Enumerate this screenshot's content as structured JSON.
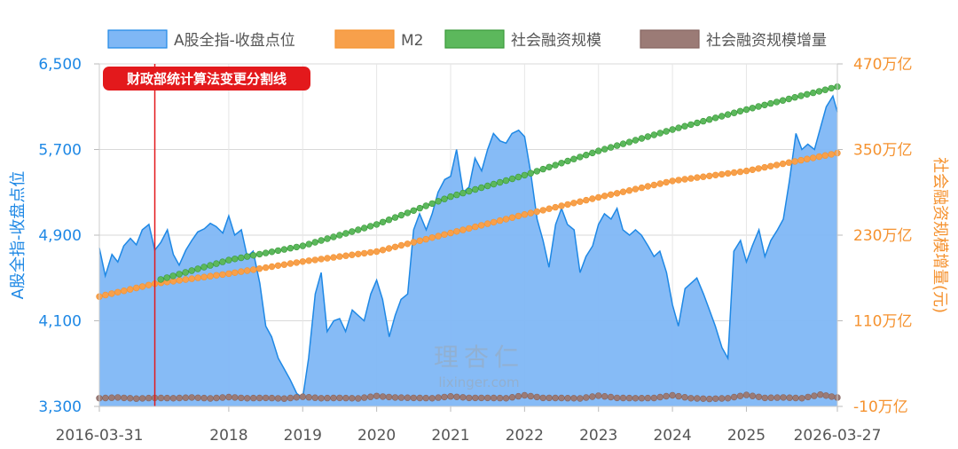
{
  "chart_data": {
    "type": "line",
    "legend": {
      "placement": "top",
      "items": [
        {
          "name": "A股全指-收盘点位",
          "color": "#7fb7f5",
          "border": "#1e88e5",
          "kind": "area"
        },
        {
          "name": "M2",
          "color": "#f7a04b",
          "border": "#f5922f",
          "kind": "line"
        },
        {
          "name": "社会融资规模",
          "color": "#5cb85c",
          "border": "#3a9a3a",
          "kind": "line"
        },
        {
          "name": "社会融资规模增量",
          "color": "#9b7b76",
          "border": "#866662",
          "kind": "line"
        }
      ]
    },
    "y_left": {
      "label": "A股全指-收盘点位",
      "min": 3300,
      "max": 6500,
      "ticks": [
        3300,
        4100,
        4900,
        5700,
        6500
      ],
      "tick_labels": [
        "3,300",
        "4,100",
        "4,900",
        "5,700",
        "6,500"
      ],
      "color": "#1e88e5"
    },
    "y_right": {
      "label": "社会融资规模增量(元)",
      "min": -10,
      "max": 470,
      "ticks": [
        -10,
        110,
        230,
        350,
        470
      ],
      "tick_labels": [
        "-10万亿",
        "110万亿",
        "230万亿",
        "350万亿",
        "470万亿"
      ],
      "color": "#f5922f"
    },
    "x_axis": {
      "start": "2016-03-31",
      "end": "2026-03-27",
      "ticks": [
        {
          "x": 2016.25,
          "label": "2016-03-31"
        },
        {
          "x": 2018.0,
          "label": "2018"
        },
        {
          "x": 2019.0,
          "label": "2019"
        },
        {
          "x": 2020.0,
          "label": "2020"
        },
        {
          "x": 2021.0,
          "label": "2021"
        },
        {
          "x": 2022.0,
          "label": "2022"
        },
        {
          "x": 2023.0,
          "label": "2023"
        },
        {
          "x": 2024.0,
          "label": "2024"
        },
        {
          "x": 2025.0,
          "label": "2025"
        },
        {
          "x": 2026.23,
          "label": "2026-03-27"
        }
      ]
    },
    "grid": true,
    "annotation": {
      "x": 2017.0,
      "label": "财政部统计算法变更分割线",
      "color": "#e3191c"
    },
    "series": [
      {
        "name": "A股全指-收盘点位",
        "axis": "left",
        "points": [
          [
            2016.25,
            4780
          ],
          [
            2016.33,
            4520
          ],
          [
            2016.42,
            4720
          ],
          [
            2016.5,
            4650
          ],
          [
            2016.58,
            4800
          ],
          [
            2016.67,
            4870
          ],
          [
            2016.75,
            4810
          ],
          [
            2016.83,
            4950
          ],
          [
            2016.92,
            5000
          ],
          [
            2017.0,
            4760
          ],
          [
            2017.08,
            4830
          ],
          [
            2017.17,
            4950
          ],
          [
            2017.25,
            4720
          ],
          [
            2017.33,
            4620
          ],
          [
            2017.42,
            4760
          ],
          [
            2017.5,
            4850
          ],
          [
            2017.58,
            4930
          ],
          [
            2017.67,
            4960
          ],
          [
            2017.75,
            5010
          ],
          [
            2017.83,
            4980
          ],
          [
            2017.92,
            4920
          ],
          [
            2018.0,
            5080
          ],
          [
            2018.08,
            4900
          ],
          [
            2018.17,
            4950
          ],
          [
            2018.25,
            4700
          ],
          [
            2018.33,
            4750
          ],
          [
            2018.42,
            4450
          ],
          [
            2018.5,
            4050
          ],
          [
            2018.58,
            3950
          ],
          [
            2018.67,
            3750
          ],
          [
            2018.75,
            3650
          ],
          [
            2018.83,
            3550
          ],
          [
            2018.92,
            3420
          ],
          [
            2019.0,
            3380
          ],
          [
            2019.08,
            3750
          ],
          [
            2019.17,
            4350
          ],
          [
            2019.25,
            4550
          ],
          [
            2019.33,
            4000
          ],
          [
            2019.42,
            4100
          ],
          [
            2019.5,
            4120
          ],
          [
            2019.58,
            4000
          ],
          [
            2019.67,
            4200
          ],
          [
            2019.75,
            4150
          ],
          [
            2019.83,
            4100
          ],
          [
            2019.92,
            4350
          ],
          [
            2020.0,
            4480
          ],
          [
            2020.08,
            4300
          ],
          [
            2020.17,
            3950
          ],
          [
            2020.25,
            4150
          ],
          [
            2020.33,
            4300
          ],
          [
            2020.42,
            4350
          ],
          [
            2020.5,
            4950
          ],
          [
            2020.58,
            5100
          ],
          [
            2020.67,
            4950
          ],
          [
            2020.75,
            5100
          ],
          [
            2020.83,
            5300
          ],
          [
            2020.92,
            5420
          ],
          [
            2021.0,
            5450
          ],
          [
            2021.08,
            5700
          ],
          [
            2021.17,
            5300
          ],
          [
            2021.25,
            5350
          ],
          [
            2021.33,
            5620
          ],
          [
            2021.42,
            5500
          ],
          [
            2021.5,
            5700
          ],
          [
            2021.58,
            5850
          ],
          [
            2021.67,
            5780
          ],
          [
            2021.75,
            5760
          ],
          [
            2021.83,
            5850
          ],
          [
            2021.92,
            5880
          ],
          [
            2022.0,
            5820
          ],
          [
            2022.08,
            5500
          ],
          [
            2022.17,
            5050
          ],
          [
            2022.25,
            4850
          ],
          [
            2022.33,
            4600
          ],
          [
            2022.42,
            5000
          ],
          [
            2022.5,
            5150
          ],
          [
            2022.58,
            5000
          ],
          [
            2022.67,
            4950
          ],
          [
            2022.75,
            4550
          ],
          [
            2022.83,
            4700
          ],
          [
            2022.92,
            4800
          ],
          [
            2023.0,
            5000
          ],
          [
            2023.08,
            5100
          ],
          [
            2023.17,
            5050
          ],
          [
            2023.25,
            5150
          ],
          [
            2023.33,
            4950
          ],
          [
            2023.42,
            4900
          ],
          [
            2023.5,
            4950
          ],
          [
            2023.58,
            4900
          ],
          [
            2023.67,
            4800
          ],
          [
            2023.75,
            4700
          ],
          [
            2023.83,
            4750
          ],
          [
            2023.92,
            4550
          ],
          [
            2024.0,
            4250
          ],
          [
            2024.08,
            4050
          ],
          [
            2024.17,
            4400
          ],
          [
            2024.25,
            4450
          ],
          [
            2024.33,
            4500
          ],
          [
            2024.42,
            4350
          ],
          [
            2024.5,
            4200
          ],
          [
            2024.58,
            4050
          ],
          [
            2024.67,
            3850
          ],
          [
            2024.75,
            3750
          ],
          [
            2024.83,
            4750
          ],
          [
            2024.92,
            4850
          ],
          [
            2025.0,
            4650
          ],
          [
            2025.08,
            4800
          ],
          [
            2025.17,
            4950
          ],
          [
            2025.25,
            4700
          ],
          [
            2025.33,
            4850
          ],
          [
            2025.42,
            4950
          ],
          [
            2025.5,
            5050
          ],
          [
            2025.58,
            5400
          ],
          [
            2025.67,
            5850
          ],
          [
            2025.75,
            5700
          ],
          [
            2025.83,
            5750
          ],
          [
            2025.92,
            5700
          ],
          [
            2026.0,
            5900
          ],
          [
            2026.08,
            6100
          ],
          [
            2026.17,
            6200
          ],
          [
            2026.23,
            6050
          ]
        ]
      },
      {
        "name": "M2",
        "axis": "right",
        "points": [
          [
            2016.25,
            144
          ],
          [
            2017.0,
            162
          ],
          [
            2018.0,
            176
          ],
          [
            2019.0,
            193
          ],
          [
            2020.0,
            207
          ],
          [
            2021.0,
            233
          ],
          [
            2022.0,
            259
          ],
          [
            2023.0,
            283
          ],
          [
            2024.0,
            306
          ],
          [
            2025.0,
            320
          ],
          [
            2026.23,
            345
          ]
        ]
      },
      {
        "name": "社会融资规模",
        "axis": "right",
        "points": [
          [
            2017.08,
            168
          ],
          [
            2018.0,
            195
          ],
          [
            2019.0,
            215
          ],
          [
            2020.0,
            245
          ],
          [
            2021.0,
            284
          ],
          [
            2022.0,
            314
          ],
          [
            2023.0,
            348
          ],
          [
            2024.0,
            378
          ],
          [
            2025.0,
            406
          ],
          [
            2026.23,
            438
          ]
        ]
      },
      {
        "name": "社会融资规模增量",
        "axis": "right",
        "points": [
          [
            2016.25,
            1.5
          ],
          [
            2016.5,
            2.5
          ],
          [
            2016.75,
            1.0
          ],
          [
            2017.0,
            2.0
          ],
          [
            2017.25,
            1.5
          ],
          [
            2017.5,
            2.5
          ],
          [
            2017.75,
            1.2
          ],
          [
            2018.0,
            3.0
          ],
          [
            2018.25,
            1.5
          ],
          [
            2018.5,
            2.0
          ],
          [
            2018.75,
            1.0
          ],
          [
            2019.0,
            3.5
          ],
          [
            2019.25,
            1.5
          ],
          [
            2019.5,
            2.0
          ],
          [
            2019.75,
            1.2
          ],
          [
            2020.0,
            4.5
          ],
          [
            2020.25,
            2.5
          ],
          [
            2020.5,
            2.0
          ],
          [
            2020.75,
            1.5
          ],
          [
            2021.0,
            4.0
          ],
          [
            2021.25,
            2.0
          ],
          [
            2021.5,
            2.0
          ],
          [
            2021.75,
            1.5
          ],
          [
            2022.0,
            5.5
          ],
          [
            2022.25,
            2.0
          ],
          [
            2022.5,
            1.8
          ],
          [
            2022.75,
            1.2
          ],
          [
            2023.0,
            5.0
          ],
          [
            2023.25,
            2.0
          ],
          [
            2023.5,
            1.5
          ],
          [
            2023.75,
            1.8
          ],
          [
            2024.0,
            5.5
          ],
          [
            2024.25,
            1.5
          ],
          [
            2024.5,
            0.5
          ],
          [
            2024.75,
            1.5
          ],
          [
            2025.0,
            6.0
          ],
          [
            2025.25,
            2.0
          ],
          [
            2025.5,
            2.5
          ],
          [
            2025.75,
            1.5
          ],
          [
            2026.0,
            6.5
          ],
          [
            2026.23,
            2.5
          ]
        ]
      }
    ]
  },
  "watermark": {
    "cn": "理杏仁",
    "en": "lixinger.com"
  }
}
